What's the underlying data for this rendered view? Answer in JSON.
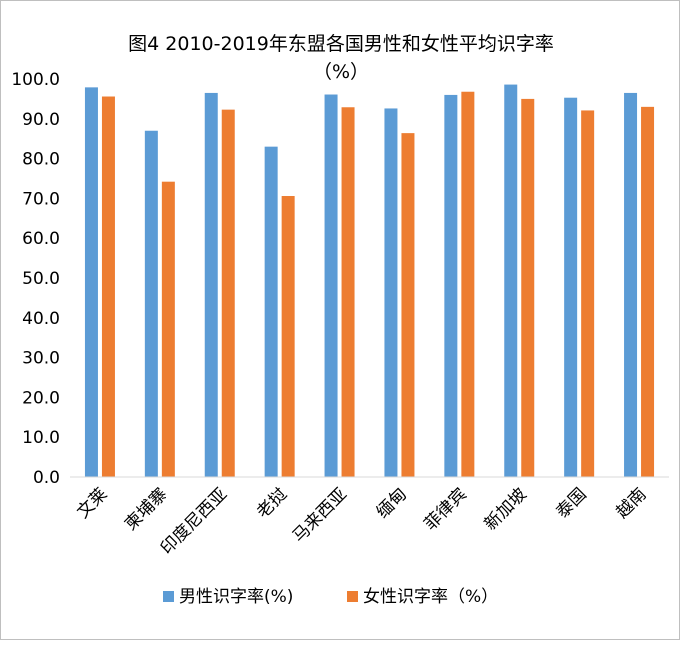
{
  "chart_data": {
    "type": "bar",
    "title": "图4 2010-2019年东盟各国男性和女性平均识字率",
    "subtitle": "（%）",
    "categories": [
      "文莱",
      "柬埔寨",
      "印度尼西亚",
      "老挝",
      "马来西亚",
      "缅甸",
      "菲律宾",
      "新加坡",
      "泰国",
      "越南"
    ],
    "series": [
      {
        "name": "男性识字率(%)",
        "color": "#5b9bd5",
        "values": [
          97.9,
          87.0,
          96.5,
          83.0,
          96.1,
          92.6,
          96.0,
          98.6,
          95.3,
          96.5
        ]
      },
      {
        "name": "女性识字率（%）",
        "color": "#ed7d31",
        "values": [
          95.6,
          74.2,
          92.3,
          70.6,
          92.9,
          86.4,
          96.8,
          95.0,
          92.1,
          93.0
        ]
      }
    ],
    "y_ticks": [
      "0.0",
      "10.0",
      "20.0",
      "30.0",
      "40.0",
      "50.0",
      "60.0",
      "70.0",
      "80.0",
      "90.0",
      "100.0"
    ],
    "ylim": [
      0,
      100
    ],
    "grid": false,
    "legend_position": "bottom"
  }
}
